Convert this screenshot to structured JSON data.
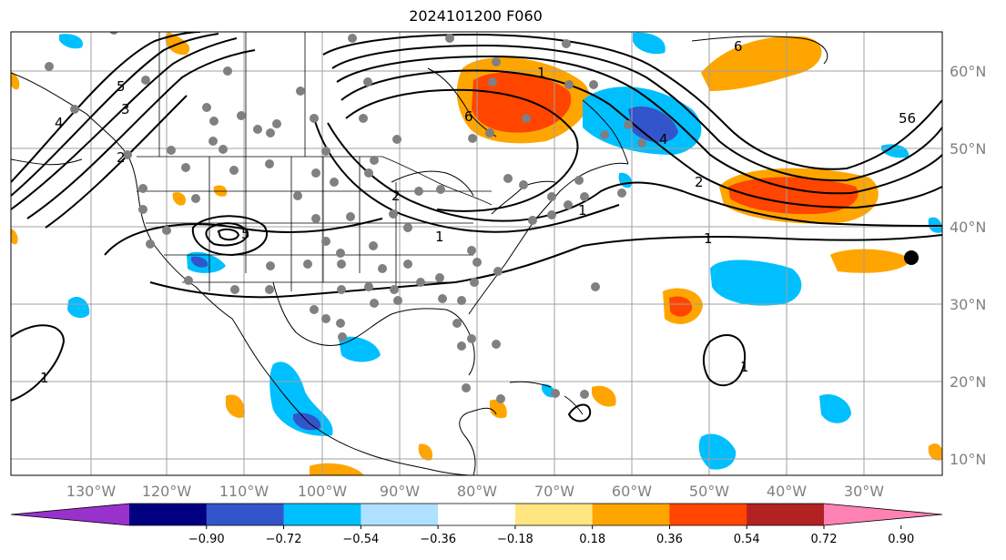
{
  "title": "2024101200 F060",
  "lon_labels": [
    "130°W",
    "120°W",
    "110°W",
    "100°W",
    "90°W",
    "80°W",
    "70°W",
    "60°W",
    "50°W",
    "40°W",
    "30°W"
  ],
  "lat_labels": [
    "60°N",
    "50°N",
    "40°N",
    "30°N",
    "20°N",
    "10°N"
  ],
  "colorbar": {
    "tick_labels": [
      "−0.90",
      "−0.72",
      "−0.54",
      "−0.36",
      "−0.18",
      "0.18",
      "0.36",
      "0.54",
      "0.72",
      "0.90"
    ],
    "colors": [
      "#9932cc",
      "#000080",
      "#3355cc",
      "#00bfff",
      "#b0e0ff",
      "#ffffff",
      "#ffe680",
      "#ffa500",
      "#ff4500",
      "#b22222",
      "#ff82b4"
    ]
  },
  "contour_labels": [
    "1",
    "1",
    "1",
    "1",
    "2",
    "3",
    "4",
    "5",
    "6",
    "1",
    "1",
    "2",
    "4",
    "6",
    "5",
    "56",
    "2"
  ],
  "colors": {
    "orange": "#ffa500",
    "red_orange": "#ff4500",
    "deep_sky_blue": "#00bfff",
    "royal_blue": "#3355cc",
    "grid": "#a0a0a0",
    "station": "#808080"
  }
}
